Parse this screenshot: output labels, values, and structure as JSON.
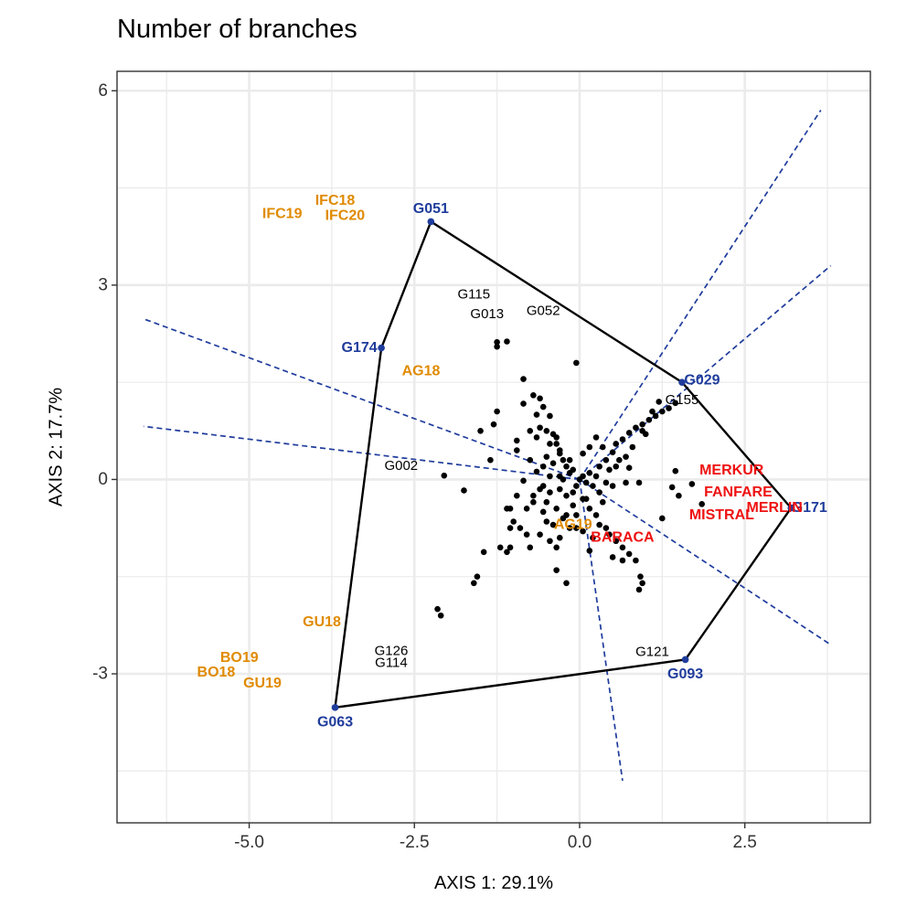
{
  "chart_data": {
    "type": "scatter",
    "title": "Number of branches",
    "xlabel": "AXIS 1: 29.1%",
    "ylabel": "AXIS 2: 17.7%",
    "xlim": [
      -7.0,
      4.4
    ],
    "ylim": [
      -5.3,
      6.3
    ],
    "x_ticks": [
      -5.0,
      -2.5,
      0.0,
      2.5
    ],
    "x_tick_labels": [
      "-5.0",
      "-2.5",
      "0.0",
      "2.5"
    ],
    "y_ticks": [
      -3,
      0,
      3,
      6
    ],
    "y_tick_labels": [
      "-3",
      "0",
      "3",
      "6"
    ],
    "grid": true,
    "colors": {
      "environment": "#E08A00",
      "vertex_genotype": "#1F3C9C",
      "check_variety": "#EE1111",
      "genotype_point": "#000000",
      "rays": "#1F3C9C",
      "polygon": "#000000",
      "grid": "#EBEBEB",
      "panel_border": "#333333"
    },
    "polygon": [
      {
        "name": "G051",
        "x": -2.25,
        "y": 3.98
      },
      {
        "name": "G029",
        "x": 1.55,
        "y": 1.5
      },
      {
        "name": "G171",
        "x": 3.2,
        "y": -0.44
      },
      {
        "name": "G093",
        "x": 1.6,
        "y": -2.78
      },
      {
        "name": "G063",
        "x": -3.7,
        "y": -3.52
      },
      {
        "name": "G174",
        "x": -3.0,
        "y": 2.03
      }
    ],
    "rays": [
      {
        "x": 3.65,
        "y": 5.7
      },
      {
        "x": 3.8,
        "y": 3.3
      },
      {
        "x": 3.8,
        "y": -2.55
      },
      {
        "x": 0.65,
        "y": -4.65
      },
      {
        "x": -6.6,
        "y": 0.82
      },
      {
        "x": -6.6,
        "y": 2.48
      }
    ],
    "environments": [
      {
        "name": "IFC18",
        "x": -3.7,
        "y": 4.3
      },
      {
        "name": "IFC19",
        "x": -4.5,
        "y": 4.1
      },
      {
        "name": "IFC20",
        "x": -3.55,
        "y": 4.07
      },
      {
        "name": "AG18",
        "x": -2.4,
        "y": 1.67
      },
      {
        "name": "AG19",
        "x": -0.1,
        "y": -0.7
      },
      {
        "name": "GU18",
        "x": -3.9,
        "y": -2.2
      },
      {
        "name": "BO19",
        "x": -5.15,
        "y": -2.75
      },
      {
        "name": "BO18",
        "x": -5.5,
        "y": -2.98
      },
      {
        "name": "GU19",
        "x": -4.8,
        "y": -3.15
      }
    ],
    "checks": [
      {
        "name": "MERKUR",
        "x": 2.3,
        "y": 0.14
      },
      {
        "name": "FANFARE",
        "x": 2.4,
        "y": -0.2
      },
      {
        "name": "MERLIN",
        "x": 2.95,
        "y": -0.44
      },
      {
        "name": "MISTRAL",
        "x": 2.15,
        "y": -0.55
      },
      {
        "name": "BARACA",
        "x": 0.65,
        "y": -0.9
      }
    ],
    "genotype_labels": [
      {
        "name": "G115",
        "x": -1.6,
        "y": 2.86
      },
      {
        "name": "G013",
        "x": -1.4,
        "y": 2.55
      },
      {
        "name": "G052",
        "x": -0.55,
        "y": 2.6
      },
      {
        "name": "G155",
        "x": 1.55,
        "y": 1.23
      },
      {
        "name": "G002",
        "x": -2.7,
        "y": 0.21
      },
      {
        "name": "G126",
        "x": -2.85,
        "y": -2.65
      },
      {
        "name": "G114",
        "x": -2.85,
        "y": -2.83
      },
      {
        "name": "G121",
        "x": 1.1,
        "y": -2.66
      }
    ],
    "genotype_points": [
      [
        -1.25,
        2.05
      ],
      [
        -1.25,
        2.12
      ],
      [
        -1.1,
        2.13
      ],
      [
        -0.05,
        1.8
      ],
      [
        -0.85,
        1.55
      ],
      [
        -0.7,
        1.3
      ],
      [
        -0.6,
        1.25
      ],
      [
        -0.85,
        1.17
      ],
      [
        -0.55,
        1.12
      ],
      [
        -0.65,
        1.0
      ],
      [
        -0.45,
        0.98
      ],
      [
        -0.6,
        0.8
      ],
      [
        -0.5,
        0.75
      ],
      [
        -0.4,
        0.7
      ],
      [
        -0.35,
        0.55
      ],
      [
        -0.3,
        0.4
      ],
      [
        -0.25,
        0.3
      ],
      [
        -0.2,
        0.2
      ],
      [
        -0.15,
        0.1
      ],
      [
        -0.1,
        0.15
      ],
      [
        -1.25,
        1.05
      ],
      [
        -1.3,
        0.85
      ],
      [
        -0.95,
        0.6
      ],
      [
        -0.75,
        0.75
      ],
      [
        -0.65,
        0.65
      ],
      [
        -0.45,
        0.55
      ],
      [
        -0.3,
        0.45
      ],
      [
        -1.5,
        0.75
      ],
      [
        -0.95,
        0.45
      ],
      [
        -0.75,
        0.3
      ],
      [
        -0.55,
        0.2
      ],
      [
        -1.35,
        0.3
      ],
      [
        -0.65,
        0.12
      ],
      [
        -0.45,
        0.05
      ],
      [
        -0.3,
        0.05
      ],
      [
        -2.05,
        0.06
      ],
      [
        -1.75,
        -0.17
      ],
      [
        -0.85,
        -0.02
      ],
      [
        -0.55,
        -0.1
      ],
      [
        -0.45,
        -0.2
      ],
      [
        -0.3,
        -0.15
      ],
      [
        -0.2,
        -0.25
      ],
      [
        0.0,
        0.0
      ],
      [
        0.1,
        -0.05
      ],
      [
        0.15,
        0.1
      ],
      [
        0.2,
        -0.1
      ],
      [
        0.25,
        0.05
      ],
      [
        0.05,
        0.05
      ],
      [
        -0.05,
        -0.1
      ],
      [
        0.3,
        0.2
      ],
      [
        0.4,
        0.3
      ],
      [
        0.5,
        0.42
      ],
      [
        0.55,
        0.55
      ],
      [
        0.65,
        0.62
      ],
      [
        0.75,
        0.72
      ],
      [
        0.85,
        0.8
      ],
      [
        0.95,
        0.85
      ],
      [
        1.05,
        0.92
      ],
      [
        1.15,
        0.98
      ],
      [
        1.25,
        1.05
      ],
      [
        1.35,
        1.1
      ],
      [
        1.45,
        1.18
      ],
      [
        1.1,
        1.05
      ],
      [
        1.2,
        1.2
      ],
      [
        0.95,
        0.75
      ],
      [
        0.6,
        0.3
      ],
      [
        0.7,
        0.35
      ],
      [
        0.8,
        0.5
      ],
      [
        0.45,
        0.15
      ],
      [
        1.0,
        0.7
      ],
      [
        0.35,
        0.5
      ],
      [
        0.15,
        0.5
      ],
      [
        0.25,
        0.65
      ],
      [
        0.05,
        0.4
      ],
      [
        0.55,
        0.2
      ],
      [
        0.75,
        0.18
      ],
      [
        0.4,
        -0.05
      ],
      [
        0.5,
        -0.1
      ],
      [
        0.7,
        -0.05
      ],
      [
        0.9,
        -0.05
      ],
      [
        1.45,
        0.13
      ],
      [
        1.7,
        -0.07
      ],
      [
        1.4,
        -0.12
      ],
      [
        1.5,
        -0.25
      ],
      [
        1.85,
        -0.38
      ],
      [
        1.25,
        -0.6
      ],
      [
        -0.5,
        -0.35
      ],
      [
        -0.55,
        -0.5
      ],
      [
        -0.35,
        -0.45
      ],
      [
        -0.4,
        -0.7
      ],
      [
        -0.25,
        -0.6
      ],
      [
        -0.1,
        -0.4
      ],
      [
        -0.05,
        -0.55
      ],
      [
        0.1,
        -0.3
      ],
      [
        0.15,
        -0.45
      ],
      [
        0.25,
        -0.55
      ],
      [
        0.3,
        -0.7
      ],
      [
        0.4,
        -0.75
      ],
      [
        0.45,
        -0.85
      ],
      [
        0.55,
        -0.95
      ],
      [
        0.65,
        -1.05
      ],
      [
        0.75,
        -1.15
      ],
      [
        0.85,
        -1.25
      ],
      [
        0.92,
        -1.5
      ],
      [
        0.95,
        -1.6
      ],
      [
        0.9,
        -1.7
      ],
      [
        0.65,
        -1.25
      ],
      [
        0.5,
        -1.2
      ],
      [
        0.2,
        -0.9
      ],
      [
        0.15,
        -1.1
      ],
      [
        0.05,
        -0.8
      ],
      [
        -0.05,
        -0.75
      ],
      [
        -0.15,
        -0.75
      ],
      [
        -0.3,
        -0.9
      ],
      [
        -0.35,
        -1.05
      ],
      [
        -0.6,
        -0.85
      ],
      [
        -0.8,
        -0.85
      ],
      [
        -0.9,
        -0.75
      ],
      [
        -0.5,
        -0.65
      ],
      [
        -1.0,
        -0.65
      ],
      [
        -1.05,
        -1.05
      ],
      [
        -1.2,
        -1.05
      ],
      [
        -0.75,
        -1.05
      ],
      [
        -1.1,
        -1.12
      ],
      [
        -1.45,
        -1.12
      ],
      [
        -1.05,
        -0.75
      ],
      [
        -0.35,
        -1.4
      ],
      [
        -0.2,
        -1.6
      ],
      [
        -1.55,
        -1.5
      ],
      [
        -1.6,
        -1.6
      ],
      [
        -2.15,
        -2.0
      ],
      [
        -2.1,
        -2.1
      ],
      [
        -1.1,
        -0.45
      ],
      [
        -0.8,
        -0.45
      ],
      [
        -0.7,
        -0.35
      ],
      [
        -0.95,
        -0.25
      ],
      [
        -0.6,
        -0.15
      ],
      [
        -0.35,
        0.65
      ],
      [
        -0.15,
        0.3
      ],
      [
        -0.1,
        -0.2
      ],
      [
        0.05,
        -0.3
      ],
      [
        -0.45,
        -0.95
      ],
      [
        -0.2,
        -0.55
      ],
      [
        -0.25,
        0.0
      ],
      [
        -0.5,
        0.35
      ],
      [
        -0.4,
        0.25
      ],
      [
        0.3,
        -0.2
      ],
      [
        0.35,
        -0.35
      ],
      [
        -0.7,
        -0.25
      ],
      [
        -1.05,
        -0.45
      ]
    ]
  }
}
